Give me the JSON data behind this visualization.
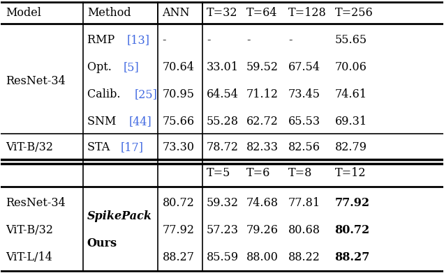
{
  "figsize": [
    6.36,
    3.92
  ],
  "dpi": 100,
  "bg_color": "#ffffff",
  "header_row": [
    "Model",
    "Method",
    "ANN",
    "T=32",
    "T=64",
    "T=128",
    "T=256"
  ],
  "section1_rows": [
    {
      "model": "ResNet-34",
      "method": "RMP [13]",
      "method_ref": "13",
      "ann": "-",
      "t1": "-",
      "t2": "-",
      "t3": "-",
      "t4": "55.65"
    },
    {
      "model": "",
      "method": "Opt. [5]",
      "method_ref": "5",
      "ann": "70.64",
      "t1": "33.01",
      "t2": "59.52",
      "t3": "67.54",
      "t4": "70.06"
    },
    {
      "model": "",
      "method": "Calib. [25]",
      "method_ref": "25",
      "ann": "70.95",
      "t1": "64.54",
      "t2": "71.12",
      "t3": "73.45",
      "t4": "74.61"
    },
    {
      "model": "",
      "method": "SNM [44]",
      "method_ref": "44",
      "ann": "75.66",
      "t1": "55.28",
      "t2": "62.72",
      "t3": "65.53",
      "t4": "69.31"
    }
  ],
  "section2_rows": [
    {
      "model": "ViT-B/32",
      "method": "STA [17]",
      "method_ref": "17",
      "ann": "73.30",
      "t1": "78.72",
      "t2": "82.33",
      "t3": "82.56",
      "t4": "82.79"
    }
  ],
  "header2_row": [
    "",
    "",
    "",
    "T=5",
    "T=6",
    "T=8",
    "T=12"
  ],
  "section3_rows": [
    {
      "model": "ResNet-34",
      "method": "SpikePack\nOurs",
      "ann": "80.72",
      "t1": "59.32",
      "t2": "74.68",
      "t3": "77.81",
      "t4": "77.92",
      "t4_bold": true
    },
    {
      "model": "ViT-B/32",
      "method": "",
      "ann": "77.92",
      "t1": "57.23",
      "t2": "79.26",
      "t3": "80.68",
      "t4": "80.72",
      "t4_bold": true
    },
    {
      "model": "ViT-L/14",
      "method": "",
      "ann": "88.27",
      "t1": "85.59",
      "t2": "88.00",
      "t3": "88.22",
      "t4": "88.27",
      "t4_bold": true
    }
  ],
  "ref_color": "#4169E1",
  "text_color": "#000000",
  "line_color": "#000000",
  "font_size": 11.5
}
